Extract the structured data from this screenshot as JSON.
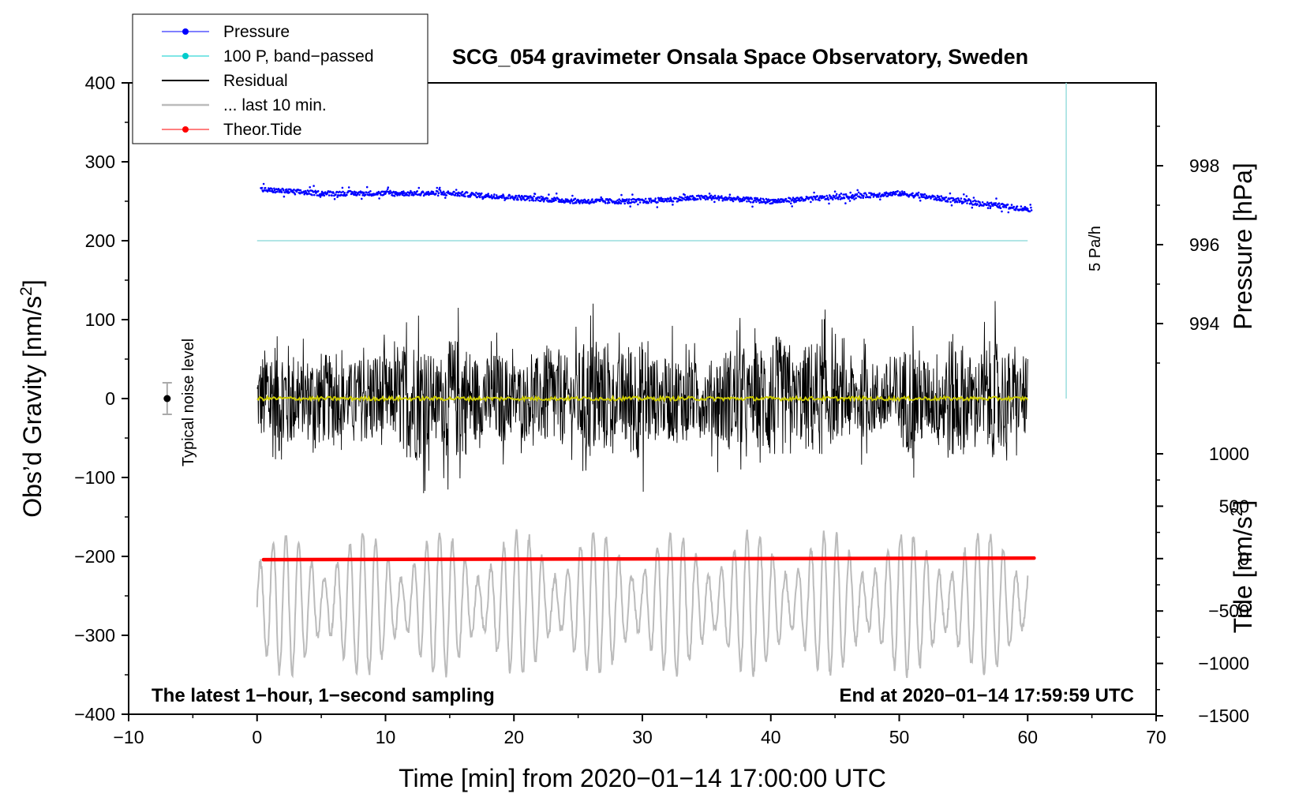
{
  "chart_data": {
    "type": "line",
    "title": "SCG_054 gravimeter Onsala Space Observatory, Sweden",
    "xlabel": "Time [min] from 2020−01−14 17:00:00 UTC",
    "ylabel_left": "Obs’d Gravity [nm/s",
    "ylabel_left_sup": "2",
    "ylabel_left_end": "]",
    "ylabel_pressure": "Pressure [hPa]",
    "ylabel_tide": "Tide [nm/s",
    "ylabel_tide_sup": "2",
    "ylabel_tide_end": "]",
    "xlim": [
      -10,
      70
    ],
    "ylim_left": [
      -400,
      400
    ],
    "x_ticks": [
      {
        "v": -10,
        "label": "−10"
      },
      {
        "v": 0,
        "label": "0"
      },
      {
        "v": 10,
        "label": "10"
      },
      {
        "v": 20,
        "label": "20"
      },
      {
        "v": 30,
        "label": "30"
      },
      {
        "v": 40,
        "label": "40"
      },
      {
        "v": 50,
        "label": "50"
      },
      {
        "v": 60,
        "label": "60"
      },
      {
        "v": 70,
        "label": "70"
      }
    ],
    "y_left_ticks": [
      {
        "v": 400,
        "label": "400"
      },
      {
        "v": 300,
        "label": "300"
      },
      {
        "v": 200,
        "label": "200"
      },
      {
        "v": 100,
        "label": "100"
      },
      {
        "v": 0,
        "label": "0"
      },
      {
        "v": -100,
        "label": "−100"
      },
      {
        "v": -200,
        "label": "−200"
      },
      {
        "v": -300,
        "label": "−300"
      },
      {
        "v": -400,
        "label": "−400"
      }
    ],
    "pressure_ticks": [
      {
        "v": 998,
        "label": "998"
      },
      {
        "v": 996,
        "label": "996"
      },
      {
        "v": 994,
        "label": "994"
      }
    ],
    "tide_ticks": [
      {
        "v": 1000,
        "label": "1000"
      },
      {
        "v": 500,
        "label": "500"
      },
      {
        "v": 0,
        "label": "0"
      },
      {
        "v": -500,
        "label": "−500"
      },
      {
        "v": -1000,
        "label": "−1000"
      },
      {
        "v": -1500,
        "label": "−1500"
      }
    ],
    "legend": [
      {
        "name": "Pressure",
        "color": "#0000ff",
        "marker": true
      },
      {
        "name": "100 P, band−passed",
        "color": "#00cccc",
        "marker": true
      },
      {
        "name": "Residual",
        "color": "#000000",
        "marker": false
      },
      {
        "name": "... last 10 min.",
        "color": "#bbbbbb",
        "marker": false
      },
      {
        "name": "Theor.Tide",
        "color": "#ff0000",
        "marker": true
      }
    ],
    "series": [
      {
        "name": "Pressure",
        "color": "#0000ff",
        "units": "hPa",
        "x": [
          0,
          5,
          10,
          15,
          20,
          25,
          30,
          35,
          40,
          45,
          50,
          55,
          60
        ],
        "values": [
          997.4,
          997.3,
          997.3,
          997.3,
          997.2,
          997.1,
          997.1,
          997.2,
          997.1,
          997.2,
          997.3,
          997.1,
          996.9
        ]
      },
      {
        "name": "100 P, band−passed",
        "color": "#99dddd",
        "units": "nm/s2",
        "x": [
          0,
          60
        ],
        "values": [
          200,
          200
        ]
      },
      {
        "name": "Residual",
        "color": "#000000",
        "units": "nm/s2",
        "x": [
          0,
          60
        ],
        "amplitude_approx": 110,
        "mean": 0
      },
      {
        "name": "Residual smoothed",
        "color": "#cccc00",
        "units": "nm/s2",
        "x": [
          0,
          60
        ],
        "values": [
          0,
          0
        ]
      },
      {
        "name": "... last 10 min.",
        "color": "#bbbbbb",
        "units": "nm/s2",
        "x": [
          0,
          60
        ],
        "center": -260,
        "amplitude_approx": 90
      },
      {
        "name": "Theor.Tide",
        "color": "#ff0000",
        "units": "nm/s2",
        "x": [
          0.5,
          60.5
        ],
        "values": [
          -10,
          5
        ]
      }
    ],
    "noise_marker": {
      "x": -7,
      "y": 0,
      "err": 20,
      "label": "Typical noise level"
    },
    "rate_marker": {
      "x": 63,
      "y_from": 0,
      "y_to": 400,
      "label": "5 Pa/h",
      "color": "#99dddd"
    },
    "notes": {
      "bottom_left": "The latest 1−hour, 1−second sampling",
      "bottom_right": "End at 2020−01−14 17:59:59 UTC"
    }
  }
}
